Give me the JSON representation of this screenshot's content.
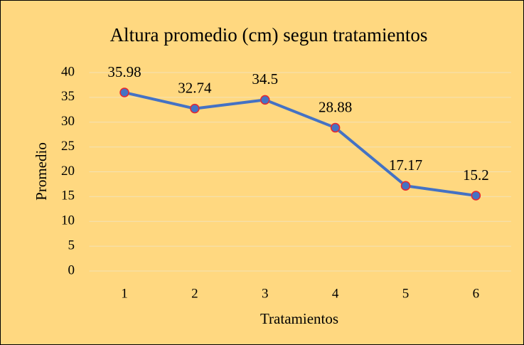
{
  "chart_data": {
    "type": "line",
    "title": "Altura promedio (cm) segun tratamientos",
    "x_label": "Tratamientos",
    "y_label": "Promedio",
    "categories": [
      "1",
      "2",
      "3",
      "4",
      "5",
      "6"
    ],
    "series": [
      {
        "name": "Promedio",
        "color": "#4472c4",
        "marker_edge": "#e8262d",
        "values": [
          35.98,
          32.74,
          34.5,
          28.88,
          17.17,
          15.2
        ]
      }
    ],
    "ylim": [
      0,
      40
    ],
    "yticks": [
      0,
      5,
      10,
      15,
      20,
      25,
      30,
      35,
      40
    ],
    "grid": true,
    "background": "#ffd880"
  }
}
